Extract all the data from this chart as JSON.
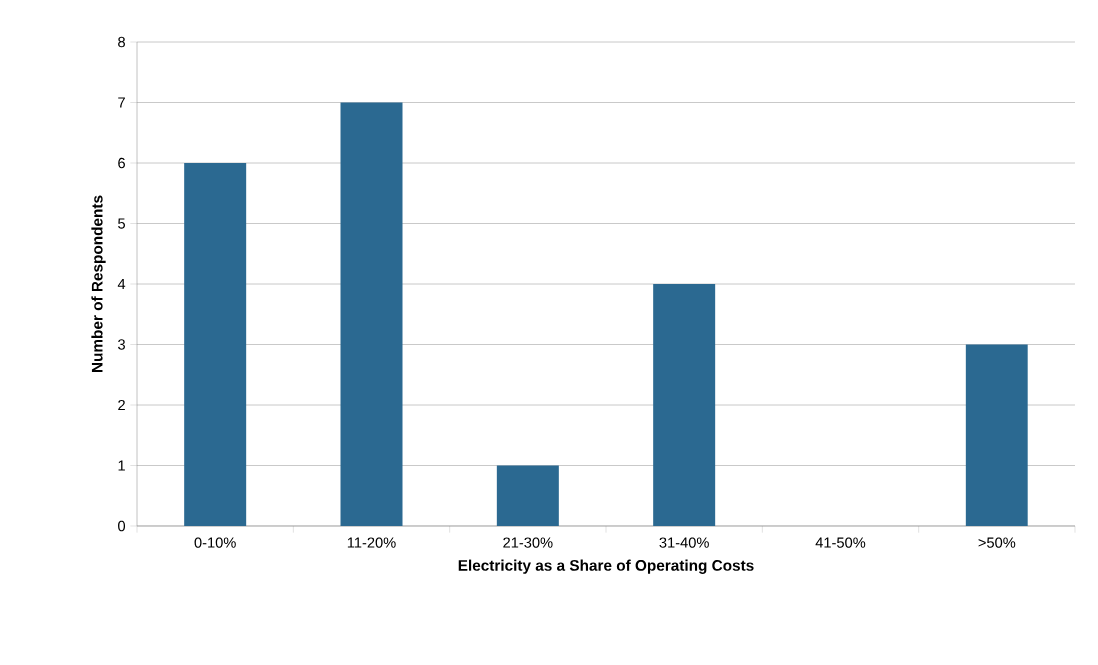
{
  "chart_data": {
    "type": "bar",
    "xlabel": "Electricity as a Share of Operating Costs",
    "ylabel": "Number of Respondents",
    "categories": [
      "0-10%",
      "11-20%",
      "21-30%",
      "31-40%",
      "41-50%",
      ">50%"
    ],
    "values": [
      6,
      7,
      1,
      4,
      0,
      3
    ],
    "color": "#2b6991",
    "ylim": [
      0,
      8
    ],
    "yticks": [
      0,
      1,
      2,
      3,
      4,
      5,
      6,
      7,
      8
    ],
    "grid": "y"
  }
}
